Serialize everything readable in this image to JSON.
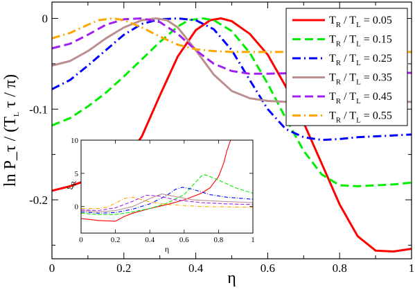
{
  "chart_data": [
    {
      "type": "line",
      "xlabel": "η",
      "ylabel": "ln P_τ / (T_L τ / π)",
      "xlim": [
        0,
        1
      ],
      "ylim": [
        -0.265,
        0.018
      ],
      "xticks": [
        0,
        0.2,
        0.4,
        0.6,
        0.8,
        1
      ],
      "xtick_labels": [
        "0",
        "0.2",
        "0.4",
        "0.6",
        "0.8",
        "1"
      ],
      "yticks": [
        0,
        -0.1,
        -0.2
      ],
      "ytick_labels": [
        "0",
        "-0.1",
        "-0.2"
      ],
      "grid": false,
      "legend_position": "top-right",
      "series": [
        {
          "name": "T_R / T_L = 0.05",
          "color": "#ff0000",
          "dash": "solid",
          "x": [
            0.0,
            0.05,
            0.1,
            0.15,
            0.2,
            0.25,
            0.3,
            0.35,
            0.4,
            0.44,
            0.47,
            0.5,
            0.55,
            0.6,
            0.65,
            0.7,
            0.75,
            0.8,
            0.85,
            0.9,
            0.95,
            1.0
          ],
          "y": [
            -0.19,
            -0.185,
            -0.178,
            -0.17,
            -0.158,
            -0.13,
            -0.085,
            -0.042,
            -0.013,
            -0.002,
            0.0,
            -0.003,
            -0.017,
            -0.04,
            -0.075,
            -0.115,
            -0.16,
            -0.205,
            -0.24,
            -0.256,
            -0.257,
            -0.254
          ]
        },
        {
          "name": "T_R / T_L = 0.15",
          "color": "#00ee00",
          "dash": "dashed",
          "x": [
            0.0,
            0.05,
            0.1,
            0.15,
            0.2,
            0.25,
            0.3,
            0.35,
            0.38,
            0.42,
            0.45,
            0.5,
            0.55,
            0.6,
            0.65,
            0.7,
            0.75,
            0.8,
            0.85,
            0.9,
            0.95,
            1.0
          ],
          "y": [
            -0.118,
            -0.11,
            -0.097,
            -0.082,
            -0.064,
            -0.045,
            -0.026,
            -0.009,
            -0.002,
            0.0,
            -0.002,
            -0.014,
            -0.038,
            -0.072,
            -0.11,
            -0.146,
            -0.172,
            -0.184,
            -0.185,
            -0.184,
            -0.183,
            -0.181
          ]
        },
        {
          "name": "T_R / T_L = 0.25",
          "color": "#0000ff",
          "dash": "dashdot",
          "x": [
            0.0,
            0.05,
            0.1,
            0.15,
            0.2,
            0.25,
            0.3,
            0.35,
            0.4,
            0.45,
            0.5,
            0.55,
            0.6,
            0.65,
            0.7,
            0.75,
            0.8,
            0.85,
            0.9,
            0.95,
            1.0
          ],
          "y": [
            -0.078,
            -0.068,
            -0.052,
            -0.035,
            -0.018,
            -0.006,
            -0.001,
            0.0,
            -0.002,
            -0.012,
            -0.035,
            -0.068,
            -0.1,
            -0.122,
            -0.131,
            -0.134,
            -0.133,
            -0.131,
            -0.13,
            -0.129,
            -0.128
          ]
        },
        {
          "name": "T_R / T_L = 0.35",
          "color": "#bc8f8f",
          "dash": "solid",
          "x": [
            0.0,
            0.05,
            0.1,
            0.15,
            0.2,
            0.25,
            0.29,
            0.32,
            0.35,
            0.4,
            0.45,
            0.5,
            0.55,
            0.6,
            0.65,
            0.7,
            0.8,
            0.9,
            1.0
          ],
          "y": [
            -0.052,
            -0.047,
            -0.036,
            -0.022,
            -0.01,
            -0.002,
            0.0,
            -0.002,
            -0.01,
            -0.035,
            -0.062,
            -0.08,
            -0.088,
            -0.091,
            -0.092,
            -0.092,
            -0.092,
            -0.092,
            -0.092
          ]
        },
        {
          "name": "T_R / T_L = 0.45",
          "color": "#a020f0",
          "dash": "dashed",
          "x": [
            0.0,
            0.05,
            0.1,
            0.15,
            0.2,
            0.25,
            0.3,
            0.35,
            0.4,
            0.45,
            0.5,
            0.55,
            0.6,
            0.7,
            0.8,
            0.9,
            1.0
          ],
          "y": [
            -0.033,
            -0.028,
            -0.018,
            -0.007,
            -0.001,
            0.0,
            -0.004,
            -0.017,
            -0.035,
            -0.05,
            -0.058,
            -0.061,
            -0.061,
            -0.06,
            -0.06,
            -0.06,
            -0.06
          ]
        },
        {
          "name": "T_R / T_L = 0.55",
          "color": "#ffa500",
          "dash": "dashdot",
          "x": [
            0.0,
            0.05,
            0.1,
            0.13,
            0.17,
            0.2,
            0.25,
            0.3,
            0.35,
            0.4,
            0.45,
            0.5,
            0.6,
            0.7,
            0.8,
            0.9,
            1.0
          ],
          "y": [
            -0.022,
            -0.016,
            -0.007,
            -0.002,
            0.0,
            -0.002,
            -0.01,
            -0.02,
            -0.029,
            -0.034,
            -0.036,
            -0.037,
            -0.037,
            -0.037,
            -0.037,
            -0.037,
            -0.037
          ]
        }
      ]
    },
    {
      "type": "line",
      "xlabel": "η",
      "ylabel": "ξ_R",
      "xlim": [
        0,
        1
      ],
      "ylim": [
        -4,
        10
      ],
      "xticks": [
        0,
        0.2,
        0.4,
        0.6,
        0.8,
        1
      ],
      "xtick_labels": [
        "0",
        "0.2",
        "0.4",
        "0.6",
        "0.8",
        "1"
      ],
      "yticks": [
        0,
        5,
        10
      ],
      "ytick_labels": [
        "0",
        "5",
        "10"
      ],
      "series": [
        {
          "color": "#ff0000",
          "dash": "solid",
          "x": [
            0.0,
            0.1,
            0.2,
            0.25,
            0.3,
            0.4,
            0.5,
            0.6,
            0.7,
            0.75,
            0.8,
            0.83,
            0.85,
            0.87
          ],
          "y": [
            -1.8,
            -2.1,
            -2.2,
            -1.5,
            -1.0,
            -0.3,
            0.3,
            1.0,
            2.0,
            2.8,
            4.5,
            6.5,
            8.5,
            10
          ]
        },
        {
          "color": "#00ee00",
          "dash": "dashed",
          "x": [
            0.0,
            0.1,
            0.2,
            0.3,
            0.4,
            0.5,
            0.6,
            0.65,
            0.7,
            0.72,
            0.8,
            0.9,
            1.0
          ],
          "y": [
            -1.0,
            -1.2,
            -1.2,
            -0.8,
            -0.3,
            0.5,
            1.8,
            3.2,
            4.6,
            4.8,
            4.0,
            2.8,
            2.0
          ]
        },
        {
          "color": "#0000ff",
          "dash": "dashdot",
          "x": [
            0.0,
            0.1,
            0.2,
            0.3,
            0.4,
            0.5,
            0.55,
            0.59,
            0.65,
            0.75,
            0.85,
            1.0
          ],
          "y": [
            -0.8,
            -1.0,
            -0.9,
            -0.4,
            0.4,
            1.7,
            2.6,
            2.9,
            2.6,
            1.8,
            1.4,
            1.1
          ]
        },
        {
          "color": "#bc8f8f",
          "dash": "solid",
          "x": [
            0.0,
            0.1,
            0.2,
            0.3,
            0.4,
            0.47,
            0.55,
            0.65,
            0.8,
            1.0
          ],
          "y": [
            -0.6,
            -0.8,
            -0.6,
            0.0,
            1.2,
            1.9,
            1.5,
            1.0,
            0.8,
            0.6
          ]
        },
        {
          "color": "#a020f0",
          "dash": "dashed",
          "x": [
            0.0,
            0.1,
            0.2,
            0.3,
            0.38,
            0.45,
            0.55,
            0.7,
            0.85,
            1.0
          ],
          "y": [
            -0.5,
            -0.6,
            -0.2,
            0.8,
            1.7,
            1.6,
            1.0,
            0.6,
            0.4,
            0.3
          ]
        },
        {
          "color": "#ffa500",
          "dash": "dashdot",
          "x": [
            0.0,
            0.1,
            0.15,
            0.2,
            0.25,
            0.3,
            0.4,
            0.5,
            0.7,
            1.0
          ],
          "y": [
            -0.3,
            -0.3,
            -0.1,
            0.5,
            1.2,
            1.4,
            0.7,
            0.3,
            0.0,
            -0.1
          ]
        }
      ]
    }
  ]
}
